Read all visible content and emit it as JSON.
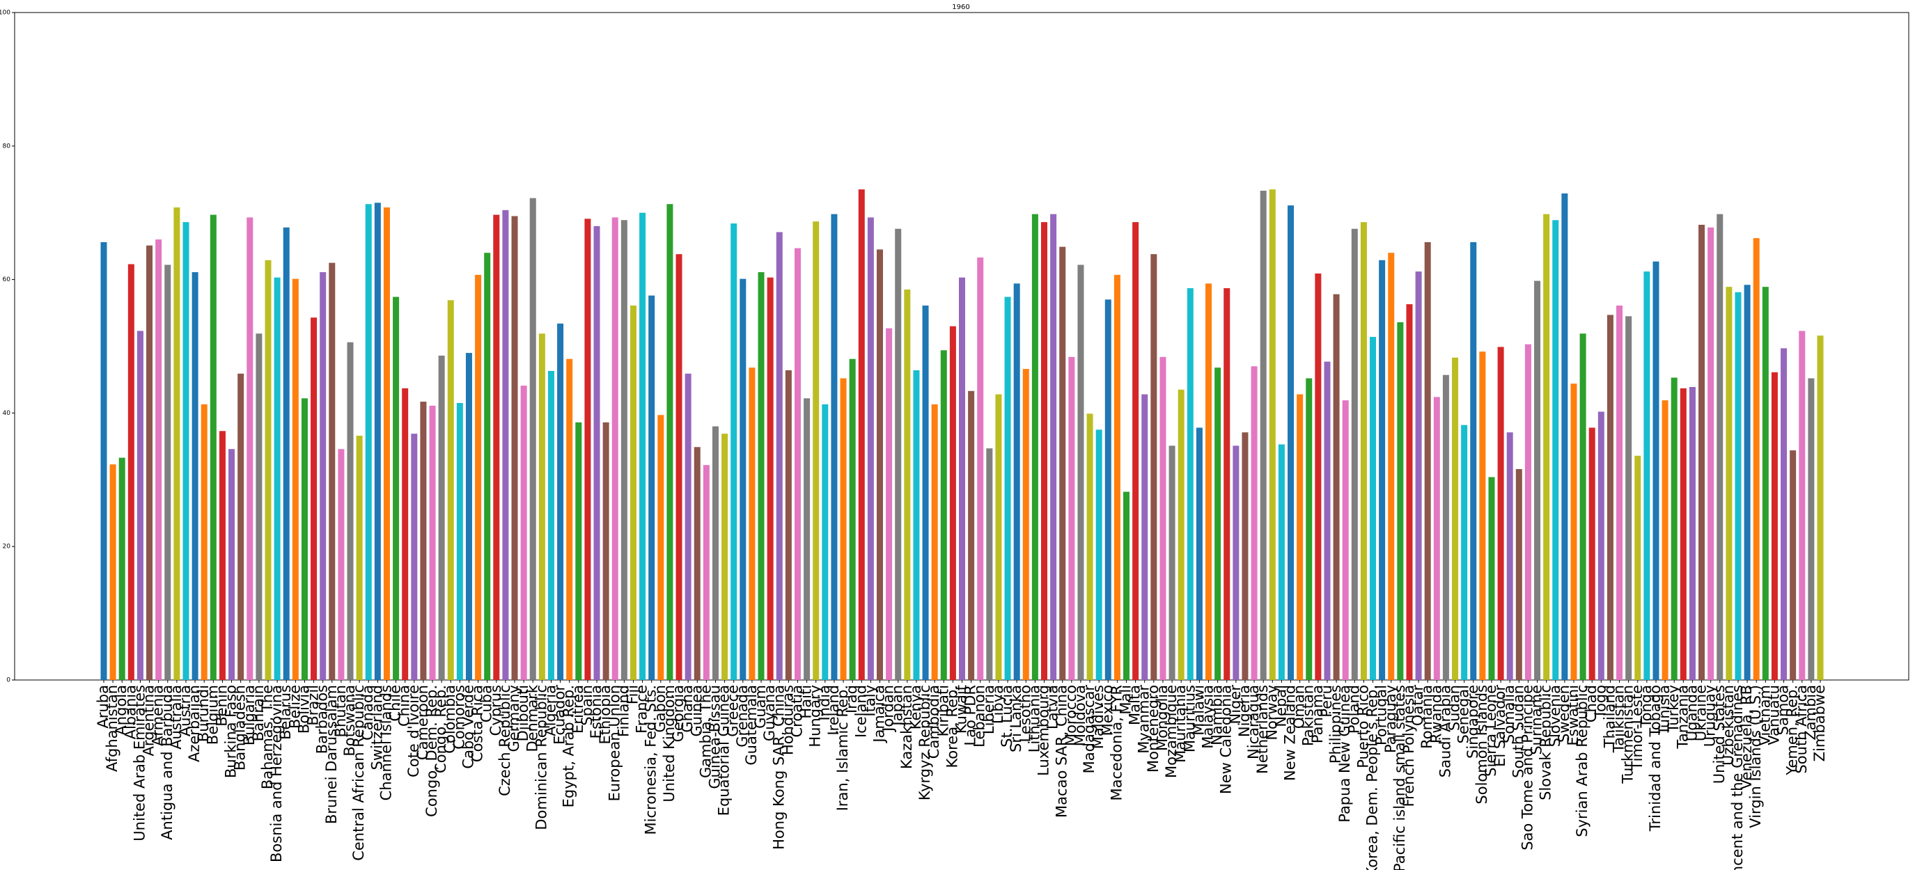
{
  "chart_data": {
    "type": "bar",
    "title": "1960",
    "categories": [
      "Aruba",
      "Afghanistan",
      "Angola",
      "Albania",
      "United Arab Emirates",
      "Argentina",
      "Armenia",
      "Antigua and Barbuda",
      "Australia",
      "Austria",
      "Azerbaijan",
      "Burundi",
      "Belgium",
      "Benin",
      "Burkina Faso",
      "Bangladesh",
      "Bulgaria",
      "Bahrain",
      "Bahamas, The",
      "Bosnia and Herzegovina",
      "Belarus",
      "Belize",
      "Bolivia",
      "Brazil",
      "Barbados",
      "Brunei Darussalam",
      "Bhutan",
      "Botswana",
      "Central African Republic",
      "Canada",
      "Switzerland",
      "Channel Islands",
      "Chile",
      "China",
      "Cote d'Ivoire",
      "Cameroon",
      "Congo, Dem. Rep.",
      "Congo, Rep.",
      "Colombia",
      "Comoros",
      "Cabo Verde",
      "Costa Rica",
      "Cuba",
      "Cyprus",
      "Czech Republic",
      "Germany",
      "Djibouti",
      "Denmark",
      "Dominican Republic",
      "Algeria",
      "Ecuador",
      "Egypt, Arab Rep.",
      "Eritrea",
      "Spain",
      "Estonia",
      "Ethiopia",
      "European Union",
      "Finland",
      "Fiji",
      "France",
      "Micronesia, Fed. Sts.",
      "Gabon",
      "United Kingdom",
      "Georgia",
      "Ghana",
      "Guinea",
      "Gambia, The",
      "Guinea-Bissau",
      "Equatorial Guinea",
      "Greece",
      "Grenada",
      "Guatemala",
      "Guam",
      "Guyana",
      "Hong Kong SAR, China",
      "Honduras",
      "Croatia",
      "Haiti",
      "Hungary",
      "India",
      "Ireland",
      "Iran, Islamic Rep.",
      "Iraq",
      "Iceland",
      "Italy",
      "Jamaica",
      "Jordan",
      "Japan",
      "Kazakhstan",
      "Kenya",
      "Kyrgyz Republic",
      "Cambodia",
      "Kiribati",
      "Korea, Rep.",
      "Kuwait",
      "Lao PDR",
      "Lebanon",
      "Liberia",
      "Libya",
      "St. Lucia",
      "Sri Lanka",
      "Lesotho",
      "Lithuania",
      "Luxembourg",
      "Latvia",
      "Macao SAR, China",
      "Morocco",
      "Moldova",
      "Madagascar",
      "Maldives",
      "Mexico",
      "Macedonia, FYR",
      "Mali",
      "Malta",
      "Myanmar",
      "Montenegro",
      "Mongolia",
      "Mozambique",
      "Mauritania",
      "Mauritius",
      "Malawi",
      "Malaysia",
      "Namibia",
      "New Caledonia",
      "Niger",
      "Nigeria",
      "Nicaragua",
      "Netherlands",
      "Norway",
      "Nepal",
      "New Zealand",
      "Oman",
      "Pakistan",
      "Panama",
      "Peru",
      "Philippines",
      "Papua New Guinea",
      "Poland",
      "Puerto Rico",
      "Korea, Dem. People's Rep.",
      "Portugal",
      "Paraguay",
      "Pacific island small states",
      "French Polynesia",
      "Qatar",
      "Romania",
      "Rwanda",
      "Saudi Arabia",
      "Sudan",
      "Senegal",
      "Singapore",
      "Solomon Islands",
      "Sierra Leone",
      "El Salvador",
      "Somalia",
      "South Sudan",
      "Sao Tome and Principe",
      "Suriname",
      "Slovak Republic",
      "Slovenia",
      "Sweden",
      "Eswatini",
      "Syrian Arab Republic",
      "Chad",
      "Togo",
      "Thailand",
      "Tajikistan",
      "Turkmenistan",
      "Timor-Leste",
      "Tonga",
      "Trinidad and Tobago",
      "Tunisia",
      "Turkey",
      "Tanzania",
      "Uganda",
      "Ukraine",
      "Uruguay",
      "United States",
      "Uzbekistan",
      "St. Vincent and the Grenadines",
      "Venezuela, RB",
      "Virgin Islands (U.S.)",
      "Vietnam",
      "Vanuatu",
      "Samoa",
      "Yemen, Rep.",
      "South Africa",
      "Zambia",
      "Zimbabwe"
    ],
    "values": [
      65.6,
      32.3,
      33.3,
      62.3,
      52.3,
      65.1,
      66,
      62.2,
      70.8,
      68.6,
      61.1,
      41.3,
      69.7,
      37.3,
      34.6,
      45.9,
      69.3,
      51.9,
      62.9,
      60.3,
      67.8,
      60.1,
      42.2,
      54.3,
      61.1,
      62.5,
      34.6,
      50.6,
      36.6,
      71.3,
      71.5,
      70.8,
      57.4,
      43.7,
      36.9,
      41.7,
      41.1,
      48.6,
      56.9,
      41.5,
      49,
      60.7,
      64,
      69.7,
      70.4,
      69.5,
      44.1,
      72.2,
      51.9,
      46.3,
      53.4,
      48.1,
      38.6,
      69.1,
      68,
      38.6,
      69.3,
      68.9,
      56.1,
      70,
      57.6,
      39.7,
      71.3,
      63.8,
      45.9,
      34.9,
      32.2,
      38,
      36.9,
      68.4,
      60.1,
      46.8,
      61.1,
      60.3,
      67.1,
      46.4,
      64.7,
      42.2,
      68.7,
      41.3,
      69.8,
      45.2,
      48.1,
      73.5,
      69.3,
      64.5,
      52.7,
      67.6,
      58.5,
      46.4,
      56.1,
      41.3,
      49.4,
      53,
      60.3,
      43.3,
      63.3,
      34.7,
      42.8,
      57.4,
      59.4,
      46.6,
      69.8,
      68.6,
      69.8,
      64.9,
      48.4,
      62.2,
      39.9,
      37.5,
      57,
      60.7,
      28.2,
      68.6,
      42.8,
      63.8,
      48.4,
      35.1,
      43.5,
      58.7,
      37.8,
      59.4,
      46.8,
      58.7,
      35.1,
      37.1,
      47,
      73.3,
      73.5,
      35.3,
      71.1,
      42.8,
      45.2,
      60.9,
      47.7,
      57.8,
      41.9,
      67.6,
      68.6,
      51.4,
      62.9,
      64,
      53.6,
      56.3,
      61.2,
      65.6,
      42.4,
      45.7,
      48.3,
      38.2,
      65.6,
      49.2,
      30.4,
      49.9,
      37.1,
      31.6,
      50.3,
      59.8,
      69.8,
      68.9,
      72.9,
      44.4,
      51.9,
      37.8,
      40.2,
      54.7,
      56.1,
      54.5,
      33.6,
      61.2,
      62.7,
      41.9,
      45.3,
      43.7,
      43.9,
      68.2,
      67.8,
      69.8,
      58.9,
      58.1,
      59.2,
      66.2,
      58.9,
      46.1,
      49.7,
      34.4,
      52.3,
      45.2,
      51.6
    ],
    "colors": [
      "#1f77b4",
      "#ff7f0e",
      "#2ca02c",
      "#d62728",
      "#9467bd",
      "#8c564b",
      "#e377c2",
      "#7f7f7f",
      "#bcbd22",
      "#17becf"
    ],
    "ylim": [
      0,
      100
    ],
    "yticks": [
      0,
      20,
      40,
      60,
      80,
      100
    ]
  }
}
